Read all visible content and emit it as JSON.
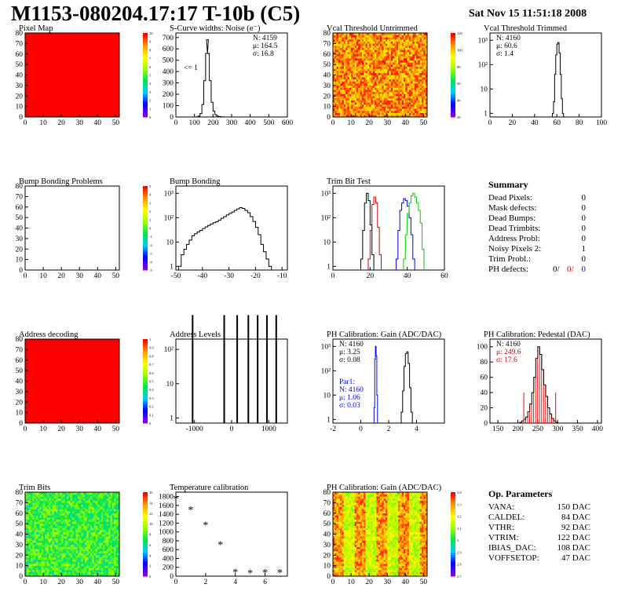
{
  "header": {
    "title": "M1153-080204.17:17 T-10b (C5)",
    "date": "Sat Nov 15 11:51:18 2008"
  },
  "colors": {
    "red": "#ff0000",
    "blue": "#0000ff",
    "green": "#00cc00",
    "darkred": "#cc0000",
    "black": "#000000"
  },
  "summary": {
    "title": "Summary",
    "rows": [
      {
        "label": "Dead Pixels:",
        "value": "0"
      },
      {
        "label": "Mask defects:",
        "value": "0"
      },
      {
        "label": "Dead Bumps:",
        "value": "0"
      },
      {
        "label": "Dead Trimbits:",
        "value": "0"
      },
      {
        "label": "Address Probl:",
        "value": "0"
      },
      {
        "label": "Noisy Pixels 2:",
        "value": "1"
      },
      {
        "label": "Trim Probl.:",
        "value": "0"
      }
    ],
    "ph_defects": {
      "label": "PH defects:",
      "v1": "0/",
      "v2": "0/",
      "v3": "0"
    }
  },
  "op_params": {
    "title": "Op. Parameters",
    "rows": [
      {
        "label": "VANA:",
        "value": "150 DAC"
      },
      {
        "label": "CALDEL:",
        "value": "84 DAC"
      },
      {
        "label": "VTHR:",
        "value": "92 DAC"
      },
      {
        "label": "VTRIM:",
        "value": "122 DAC"
      },
      {
        "label": "IBIAS_DAC:",
        "value": "108 DAC"
      },
      {
        "label": "VOFFSETOP:",
        "value": "47 DAC"
      }
    ]
  },
  "chart_data": [
    {
      "id": "pixel-map",
      "type": "heatmap",
      "title": "Pixel Map",
      "xticks": [
        0,
        10,
        20,
        30,
        40,
        50
      ],
      "yticks": [
        0,
        10,
        20,
        30,
        40,
        50,
        60,
        70,
        80
      ],
      "xlim": [
        0,
        52
      ],
      "ylim": [
        0,
        80
      ],
      "fill": "uniform-red",
      "zticks": [
        "10",
        "9",
        "8",
        "7",
        "6",
        "5",
        "4",
        "3",
        "2",
        "1",
        "0"
      ]
    },
    {
      "id": "scurve-noise",
      "type": "histogram",
      "title": "S-Curve widths: Noise (e⁻)",
      "xticks": [
        0,
        100,
        200,
        300,
        400,
        500,
        600
      ],
      "yticks": [
        0,
        100,
        200,
        300,
        400,
        500,
        600,
        700
      ],
      "xlim": [
        0,
        600
      ],
      "ylim": [
        0,
        740
      ],
      "log": false,
      "stats": [
        "N: 4159",
        "μ: 164.5",
        "σ: 16.8"
      ],
      "annotation": "<= 1",
      "bins": [
        [
          100,
          0
        ],
        [
          110,
          2
        ],
        [
          120,
          8
        ],
        [
          130,
          30
        ],
        [
          140,
          110
        ],
        [
          150,
          320
        ],
        [
          160,
          560
        ],
        [
          165,
          680
        ],
        [
          170,
          560
        ],
        [
          180,
          320
        ],
        [
          190,
          130
        ],
        [
          200,
          50
        ],
        [
          210,
          20
        ],
        [
          220,
          8
        ],
        [
          230,
          4
        ],
        [
          240,
          2
        ],
        [
          250,
          1
        ],
        [
          260,
          0
        ]
      ]
    },
    {
      "id": "vcal-untrimmed",
      "type": "heatmap",
      "title": "Vcal Threshold Untrimmed",
      "xticks": [
        0,
        10,
        20,
        30,
        40,
        50
      ],
      "yticks": [
        0,
        10,
        20,
        30,
        40,
        50,
        60,
        70,
        80
      ],
      "xlim": [
        0,
        52
      ],
      "ylim": [
        0,
        80
      ],
      "fill": "orange-noise",
      "zticks": [
        "120",
        "100",
        "80",
        "60",
        "40",
        "20"
      ]
    },
    {
      "id": "vcal-trimmed",
      "type": "histogram",
      "title": "Vcal Threshold Trimmed",
      "xticks": [
        0,
        20,
        40,
        60,
        80,
        100
      ],
      "xlim": [
        0,
        100
      ],
      "log": true,
      "yticks_log": [
        "1",
        "10",
        "10²",
        "10³"
      ],
      "stats": [
        "N: 4160",
        "μ: 60.6",
        "σ: 1.4"
      ],
      "bins": [
        [
          56,
          1
        ],
        [
          57,
          3
        ],
        [
          58,
          40
        ],
        [
          59,
          250
        ],
        [
          60,
          700
        ],
        [
          61,
          800
        ],
        [
          62,
          300
        ],
        [
          63,
          40
        ],
        [
          64,
          4
        ],
        [
          65,
          1
        ]
      ]
    },
    {
      "id": "bump-bonding-problems",
      "type": "heatmap",
      "title": "Bump Bonding Problems",
      "xticks": [
        0,
        10,
        20,
        30,
        40,
        50
      ],
      "yticks": [
        0,
        10,
        20,
        30,
        40,
        50,
        60,
        70,
        80
      ],
      "xlim": [
        0,
        52
      ],
      "ylim": [
        0,
        80
      ],
      "fill": "empty",
      "zticks": [
        "5",
        "4",
        "3",
        "2",
        "1",
        "0",
        "-1",
        "-2",
        "-3",
        "-4",
        "-5"
      ]
    },
    {
      "id": "bump-bonding",
      "type": "histogram",
      "title": "Bump Bonding",
      "xticks": [
        -50,
        -40,
        -30,
        -20,
        -10
      ],
      "xlim": [
        -50,
        -8
      ],
      "log": true,
      "yticks_log": [
        "1",
        "10",
        "10²",
        "10³"
      ],
      "bins": [
        [
          -49,
          1
        ],
        [
          -48,
          3
        ],
        [
          -47,
          5
        ],
        [
          -46,
          8
        ],
        [
          -45,
          12
        ],
        [
          -44,
          18
        ],
        [
          -43,
          22
        ],
        [
          -42,
          26
        ],
        [
          -41,
          30
        ],
        [
          -40,
          36
        ],
        [
          -39,
          42
        ],
        [
          -38,
          48
        ],
        [
          -37,
          55
        ],
        [
          -36,
          62
        ],
        [
          -35,
          68
        ],
        [
          -34,
          80
        ],
        [
          -33,
          95
        ],
        [
          -32,
          110
        ],
        [
          -31,
          130
        ],
        [
          -30,
          150
        ],
        [
          -29,
          170
        ],
        [
          -28,
          200
        ],
        [
          -27,
          230
        ],
        [
          -26,
          260
        ],
        [
          -25,
          240
        ],
        [
          -24,
          200
        ],
        [
          -23,
          160
        ],
        [
          -22,
          110
        ],
        [
          -21,
          70
        ],
        [
          -20,
          40
        ],
        [
          -19,
          20
        ],
        [
          -18,
          8
        ],
        [
          -17,
          4
        ],
        [
          -16,
          2
        ],
        [
          -15,
          1
        ]
      ]
    },
    {
      "id": "trim-bit-test",
      "type": "histogram",
      "title": "Trim Bit Test",
      "xticks": [
        0,
        20,
        40,
        60
      ],
      "xlim": [
        0,
        60
      ],
      "log": true,
      "yticks_log": [
        "1",
        "10",
        "10²",
        "10³"
      ],
      "series": [
        {
          "name": "",
          "color": "#000000",
          "bins": [
            [
              15,
              2
            ],
            [
              16,
              30
            ],
            [
              17,
              400
            ],
            [
              18,
              1000
            ],
            [
              19,
              500
            ],
            [
              20,
              50
            ],
            [
              21,
              3
            ]
          ]
        },
        {
          "name": "",
          "color": "#cc0000",
          "bins": [
            [
              19,
              2
            ],
            [
              20,
              30
            ],
            [
              21,
              350
            ],
            [
              22,
              700
            ],
            [
              23,
              400
            ],
            [
              24,
              40
            ],
            [
              25,
              3
            ]
          ]
        },
        {
          "name": "",
          "color": "#0000ff",
          "bins": [
            [
              34,
              2
            ],
            [
              35,
              30
            ],
            [
              36,
              200
            ],
            [
              37,
              400
            ],
            [
              38,
              600
            ],
            [
              39,
              500
            ],
            [
              40,
              300
            ],
            [
              41,
              100
            ],
            [
              42,
              20
            ],
            [
              43,
              2
            ]
          ]
        },
        {
          "name": "",
          "color": "#00cc00",
          "bins": [
            [
              38,
              2
            ],
            [
              39,
              20
            ],
            [
              40,
              150
            ],
            [
              41,
              400
            ],
            [
              42,
              800
            ],
            [
              43,
              1000
            ],
            [
              44,
              700
            ],
            [
              45,
              400
            ],
            [
              46,
              200
            ],
            [
              47,
              60
            ],
            [
              48,
              5
            ]
          ]
        }
      ]
    },
    {
      "id": "address-decoding",
      "type": "heatmap",
      "title": "Address decoding",
      "xticks": [
        0,
        10,
        20,
        30,
        40,
        50
      ],
      "yticks": [
        0,
        10,
        20,
        30,
        40,
        50,
        60,
        70,
        80
      ],
      "xlim": [
        0,
        52
      ],
      "ylim": [
        0,
        80
      ],
      "fill": "uniform-red",
      "zticks": [
        "1",
        "0.9",
        "0.8",
        "0.7",
        "0.6",
        "0.5",
        "0.4",
        "0.3",
        "0.2",
        "0.1",
        "0"
      ]
    },
    {
      "id": "address-levels",
      "type": "histogram",
      "title": "Address Levels",
      "xticks": [
        -1000,
        0,
        1000
      ],
      "xlim": [
        -1500,
        1500
      ],
      "log": true,
      "yticks_log": [
        "1",
        "10",
        "10²"
      ],
      "spikes": [
        [
          -1050,
          1000
        ],
        [
          -200,
          1000
        ],
        [
          150,
          1000
        ],
        [
          450,
          1000
        ],
        [
          700,
          1000
        ],
        [
          950,
          1000
        ],
        [
          1200,
          1000
        ]
      ]
    },
    {
      "id": "ph-gain",
      "type": "histogram",
      "title": "PH Calibration: Gain (ADC/DAC)",
      "xticks": [
        -2,
        0,
        2,
        4
      ],
      "xlim": [
        -2,
        6
      ],
      "log": true,
      "yticks_log": [
        "1",
        "10",
        "10²",
        "10³"
      ],
      "stats": [
        "N: 4160",
        "μ: 3.25",
        "σ: 0.08"
      ],
      "stats2": [
        "Par1:",
        "N: 4160",
        "μ: 1.06",
        "σ: 0.03"
      ],
      "series": [
        {
          "name": "",
          "color": "#000000",
          "bins": [
            [
              2.9,
              2
            ],
            [
              3.0,
              15
            ],
            [
              3.1,
              150
            ],
            [
              3.2,
              500
            ],
            [
              3.3,
              600
            ],
            [
              3.4,
              200
            ],
            [
              3.5,
              20
            ],
            [
              3.6,
              2
            ]
          ]
        },
        {
          "name": "",
          "color": "#0000ff",
          "bins": [
            [
              0.95,
              3
            ],
            [
              1.0,
              300
            ],
            [
              1.05,
              1000
            ],
            [
              1.1,
              400
            ],
            [
              1.15,
              10
            ]
          ]
        }
      ]
    },
    {
      "id": "ph-pedestal",
      "type": "histogram",
      "title": "PH Calibration: Pedestal (DAC)",
      "xticks": [
        150,
        200,
        250,
        300,
        350,
        400
      ],
      "xlim": [
        130,
        410
      ],
      "log": false,
      "yticks": [
        0,
        20,
        40,
        60,
        80,
        100
      ],
      "ylim": [
        0,
        110
      ],
      "stats": [
        "N: 4160",
        "μ: 249.6",
        "σ: 17.6"
      ],
      "bins": [
        [
          200,
          0
        ],
        [
          205,
          1
        ],
        [
          210,
          3
        ],
        [
          215,
          5
        ],
        [
          220,
          8
        ],
        [
          225,
          15
        ],
        [
          230,
          25
        ],
        [
          235,
          40
        ],
        [
          240,
          60
        ],
        [
          245,
          85
        ],
        [
          250,
          100
        ],
        [
          255,
          90
        ],
        [
          260,
          70
        ],
        [
          265,
          50
        ],
        [
          270,
          35
        ],
        [
          275,
          20
        ],
        [
          280,
          12
        ],
        [
          285,
          6
        ],
        [
          290,
          3
        ],
        [
          295,
          1
        ],
        [
          300,
          0
        ]
      ]
    },
    {
      "id": "trim-bits",
      "type": "heatmap",
      "title": "Trim Bits",
      "xticks": [
        0,
        10,
        20,
        30,
        40,
        50
      ],
      "yticks": [
        0,
        10,
        20,
        30,
        40,
        50,
        60,
        70,
        80
      ],
      "xlim": [
        0,
        52
      ],
      "ylim": [
        0,
        80
      ],
      "fill": "green-noise",
      "zticks": [
        "16",
        "14",
        "12",
        "10",
        "8",
        "6",
        "4",
        "2",
        "0"
      ]
    },
    {
      "id": "temperature-calibration",
      "type": "scatter",
      "title": "Temperature calibration",
      "xticks": [
        0,
        2,
        4,
        6
      ],
      "yticks": [
        0,
        200,
        400,
        600,
        800,
        1000,
        1200,
        1400,
        1600,
        1800
      ],
      "xlim": [
        0,
        7.5
      ],
      "ylim": [
        0,
        1900
      ],
      "x": [
        0,
        1,
        2,
        3,
        4,
        5,
        6,
        7
      ],
      "y": [
        1760,
        1510,
        1160,
        720,
        95,
        80,
        85,
        85
      ]
    },
    {
      "id": "ph-gain-map",
      "type": "heatmap",
      "title": "PH Calibration: Gain (ADC/DAC)",
      "xticks": [
        0,
        10,
        20,
        30,
        40,
        50
      ],
      "yticks": [
        0,
        10,
        20,
        30,
        40,
        50,
        60,
        70,
        80
      ],
      "xlim": [
        0,
        52
      ],
      "ylim": [
        0,
        80
      ],
      "fill": "gain-noise",
      "zticks": [
        "3.4",
        "3.3",
        "3.2",
        "3.1",
        "3",
        "2.9",
        "2.8",
        "2.7"
      ]
    }
  ]
}
